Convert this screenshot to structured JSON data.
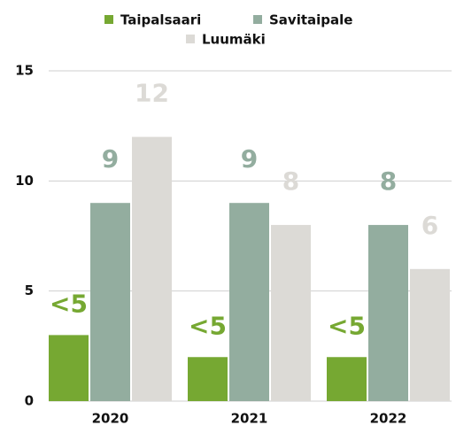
{
  "chart_data": {
    "type": "bar",
    "categories": [
      "2020",
      "2021",
      "2022"
    ],
    "series": [
      {
        "name": "Taipalsaari",
        "color": "#76a832",
        "values": [
          3,
          2,
          2
        ],
        "value_labels": [
          "<5",
          "<5",
          "<5"
        ]
      },
      {
        "name": "Savitaipale",
        "color": "#93ad9f",
        "values": [
          9,
          9,
          8
        ]
      },
      {
        "name": "Luumäki",
        "color": "#dcdad6",
        "values": [
          12,
          8,
          6
        ]
      }
    ],
    "ylim": [
      0,
      15
    ],
    "yticks": [
      0,
      5,
      10,
      15
    ],
    "grid": true
  }
}
